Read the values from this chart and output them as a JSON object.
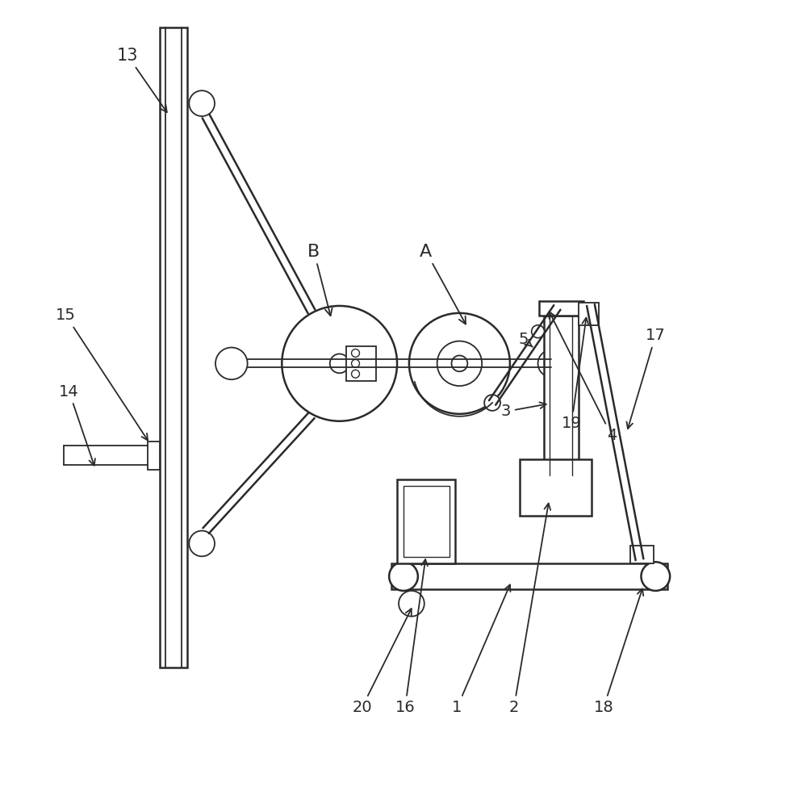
{
  "background_color": "#ffffff",
  "line_color": "#2a2a2a",
  "figsize": [
    10.0,
    9.8
  ],
  "dpi": 100
}
